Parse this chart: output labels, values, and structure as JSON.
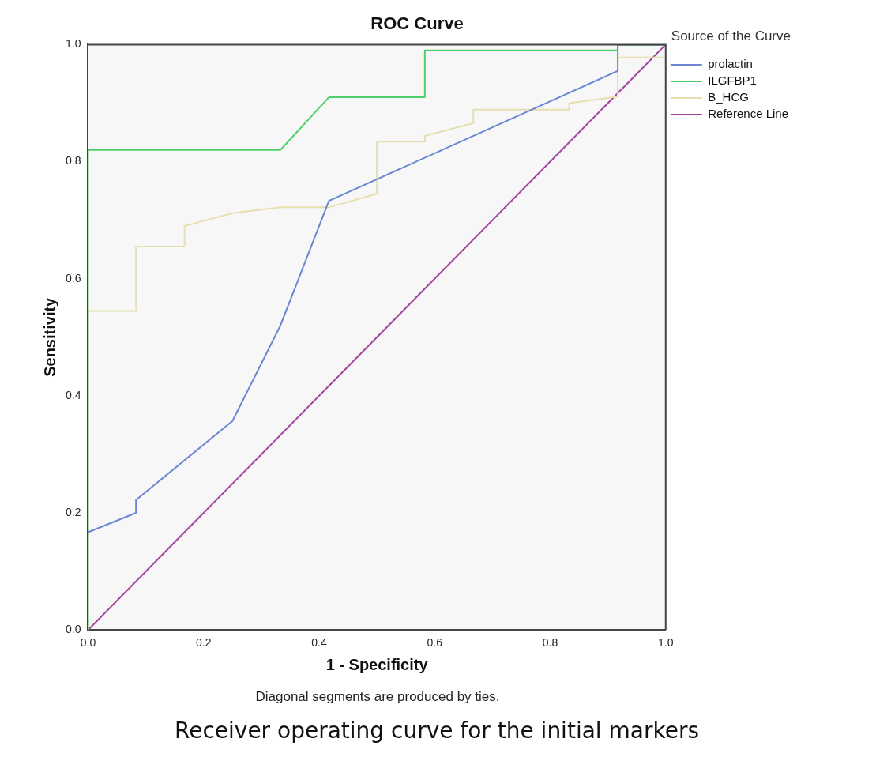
{
  "chart_data": {
    "type": "line",
    "title": "ROC Curve",
    "xlabel": "1 - Specificity",
    "ylabel": "Sensitivity",
    "legend_title": "Source of the Curve",
    "legend": "right",
    "marker": "none",
    "grid": false,
    "xlim": [
      0,
      1
    ],
    "ylim": [
      0,
      1
    ],
    "xticks": [
      {
        "value": 0,
        "label": "0.0"
      },
      {
        "value": 0.2,
        "label": "0.2"
      },
      {
        "value": 0.4,
        "label": "0.4"
      },
      {
        "value": 0.6,
        "label": "0.6"
      },
      {
        "value": 0.8,
        "label": "0.8"
      },
      {
        "value": 1,
        "label": "1.0"
      }
    ],
    "yticks": [
      {
        "value": 0,
        "label": "0.0"
      },
      {
        "value": 0.2,
        "label": "0.2"
      },
      {
        "value": 0.4,
        "label": "0.4"
      },
      {
        "value": 0.6,
        "label": "0.6"
      },
      {
        "value": 0.8,
        "label": "0.8"
      },
      {
        "value": 1,
        "label": "1.0"
      }
    ],
    "series": [
      {
        "name": "prolactin",
        "color": "#6b86d2",
        "x": [
          0,
          0.083,
          0.083,
          0.25,
          0.333,
          0.417,
          0.917,
          0.917,
          1
        ],
        "values": [
          0.167,
          0.2,
          0.222,
          0.357,
          0.52,
          0.733,
          0.955,
          1,
          1
        ]
      },
      {
        "name": "ILGFBP1",
        "color": "#4fcf6a",
        "x": [
          0,
          0,
          0.333,
          0.417,
          0.583,
          0.583,
          0.917,
          0.917,
          1
        ],
        "values": [
          0,
          0.82,
          0.82,
          0.91,
          0.91,
          0.99,
          0.99,
          1,
          1
        ]
      },
      {
        "name": "B_HCG",
        "color": "#e6dfb0",
        "x": [
          0,
          0,
          0.083,
          0.083,
          0.167,
          0.167,
          0.25,
          0.333,
          0.417,
          0.5,
          0.5,
          0.583,
          0.583,
          0.667,
          0.667,
          0.833,
          0.833,
          0.917,
          0.917,
          1
        ],
        "values": [
          0,
          0.545,
          0.545,
          0.655,
          0.655,
          0.69,
          0.712,
          0.722,
          0.722,
          0.745,
          0.834,
          0.834,
          0.844,
          0.866,
          0.889,
          0.889,
          0.9,
          0.911,
          0.978,
          0.978
        ]
      },
      {
        "name": "Reference Line",
        "color": "#a3449e",
        "x": [
          0,
          1
        ],
        "values": [
          0,
          1
        ]
      }
    ],
    "annotations": [
      "Diagonal segments are produced by ties.",
      "Receiver operating curve for the initial markers"
    ]
  }
}
